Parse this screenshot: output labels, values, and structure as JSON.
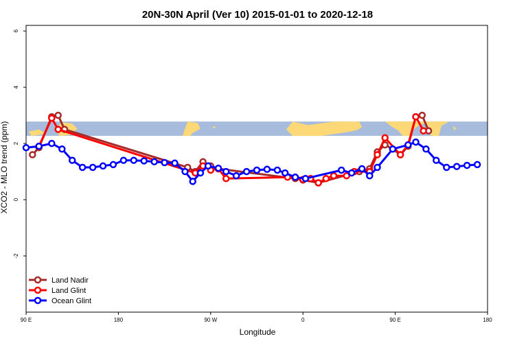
{
  "chart_data": {
    "type": "line",
    "title": "20N-30N April (Ver 10)   2015-01-01 to 2020-12-18",
    "xlabel": "Longitude",
    "ylabel": "XCO2 - MLO trend (ppm)",
    "xlim": [
      -90,
      270
    ],
    "ylim": [
      -4,
      6.2
    ],
    "x_ticks": [
      {
        "value": -90,
        "label": "90 E"
      },
      {
        "value": -18,
        "label": "180"
      },
      {
        "value": 54,
        "label": "90 W"
      },
      {
        "value": 126,
        "label": "0"
      },
      {
        "value": 198,
        "label": "90 E"
      },
      {
        "value": 270,
        "label": "180"
      }
    ],
    "y_ticks": [
      {
        "value": -2,
        "label": "-2"
      },
      {
        "value": 0,
        "label": "0"
      },
      {
        "value": 2,
        "label": "2"
      },
      {
        "value": 4,
        "label": "4"
      },
      {
        "value": 6,
        "label": "6"
      }
    ],
    "map_band": {
      "y_range": [
        2.27,
        2.78
      ],
      "ocean_color": "#a7bcdc",
      "land_color": "#fcd876"
    },
    "legend_position": "bottom-left",
    "series": [
      {
        "name": "Land Nadir",
        "color": "#a52a2a",
        "points": [
          [
            -85,
            1.6
          ],
          [
            -80,
            1.85
          ],
          [
            -70,
            2.95
          ],
          [
            -65,
            3.0
          ],
          [
            -60,
            2.5
          ],
          [
            36,
            1.15
          ],
          [
            42,
            1.0
          ],
          [
            48,
            1.35
          ],
          [
            54,
            1.2
          ],
          [
            60,
            1.1
          ],
          [
            120,
            0.75
          ],
          [
            126,
            0.7
          ],
          [
            138,
            0.6
          ],
          [
            170,
            1.0
          ],
          [
            178,
            1.1
          ],
          [
            184,
            1.7
          ],
          [
            190,
            1.95
          ],
          [
            196,
            1.8
          ],
          [
            202,
            1.6
          ],
          [
            208,
            1.9
          ],
          [
            214,
            2.95
          ],
          [
            219,
            3.0
          ],
          [
            224,
            2.45
          ]
        ]
      },
      {
        "name": "Land Glint",
        "color": "#ff0000",
        "points": [
          [
            -80,
            1.9
          ],
          [
            -70,
            2.9
          ],
          [
            -65,
            2.5
          ],
          [
            42,
            0.95
          ],
          [
            48,
            1.2
          ],
          [
            54,
            1.05
          ],
          [
            60,
            1.1
          ],
          [
            66,
            0.75
          ],
          [
            114,
            0.8
          ],
          [
            120,
            0.8
          ],
          [
            126,
            0.72
          ],
          [
            132,
            0.75
          ],
          [
            138,
            0.6
          ],
          [
            144,
            0.75
          ],
          [
            150,
            0.85
          ],
          [
            160,
            0.85
          ],
          [
            166,
            1.0
          ],
          [
            178,
            1.0
          ],
          [
            184,
            1.6
          ],
          [
            190,
            2.2
          ],
          [
            202,
            1.6
          ],
          [
            208,
            1.95
          ],
          [
            214,
            2.95
          ],
          [
            220,
            2.45
          ]
        ]
      },
      {
        "name": "Ocean Glint",
        "color": "#0000ff",
        "points": [
          [
            -90,
            1.85
          ],
          [
            -80,
            1.9
          ],
          [
            -70,
            2.0
          ],
          [
            -62,
            1.8
          ],
          [
            -54,
            1.4
          ],
          [
            -46,
            1.15
          ],
          [
            -38,
            1.15
          ],
          [
            -30,
            1.2
          ],
          [
            -22,
            1.25
          ],
          [
            -14,
            1.4
          ],
          [
            -6,
            1.4
          ],
          [
            2,
            1.38
          ],
          [
            10,
            1.35
          ],
          [
            18,
            1.32
          ],
          [
            26,
            1.3
          ],
          [
            34,
            1.0
          ],
          [
            40,
            0.65
          ],
          [
            46,
            0.95
          ],
          [
            52,
            1.2
          ],
          [
            60,
            1.12
          ],
          [
            66,
            1.0
          ],
          [
            74,
            0.85
          ],
          [
            82,
            1.0
          ],
          [
            90,
            1.05
          ],
          [
            98,
            1.08
          ],
          [
            106,
            1.05
          ],
          [
            112,
            0.95
          ],
          [
            120,
            0.8
          ],
          [
            128,
            0.75
          ],
          [
            156,
            1.05
          ],
          [
            164,
            0.95
          ],
          [
            172,
            1.1
          ],
          [
            178,
            0.85
          ],
          [
            184,
            1.15
          ],
          [
            196,
            1.8
          ],
          [
            208,
            1.95
          ],
          [
            214,
            2.05
          ],
          [
            222,
            1.8
          ],
          [
            230,
            1.4
          ],
          [
            238,
            1.15
          ],
          [
            246,
            1.18
          ],
          [
            254,
            1.22
          ],
          [
            262,
            1.25
          ]
        ]
      }
    ]
  }
}
